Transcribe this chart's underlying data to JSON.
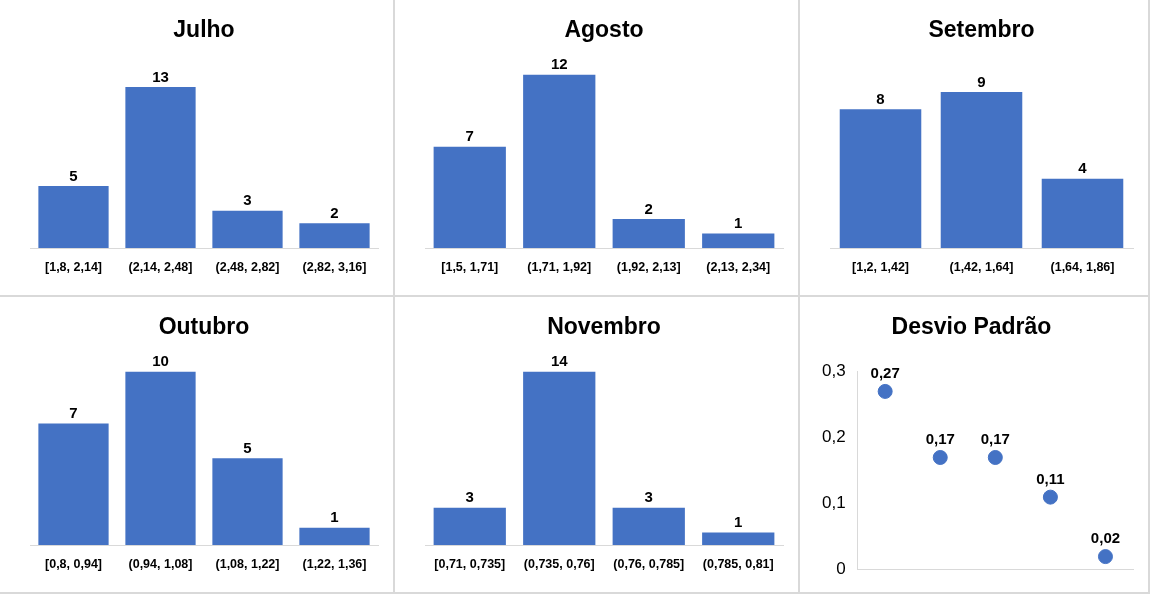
{
  "chart_data": [
    {
      "type": "bar",
      "title": "Julho",
      "categories": [
        "[1,8, 2,14]",
        "(2,14, 2,48]",
        "(2,48, 2,82]",
        "(2,82, 3,16]"
      ],
      "values": [
        5,
        13,
        3,
        2
      ],
      "color": "#4472c4",
      "data_labels": true,
      "tick_labels": "x",
      "grid": false,
      "legend": false
    },
    {
      "type": "bar",
      "title": "Agosto",
      "categories": [
        "[1,5, 1,71]",
        "(1,71, 1,92]",
        "(1,92, 2,13]",
        "(2,13, 2,34]"
      ],
      "values": [
        7,
        12,
        2,
        1
      ],
      "color": "#4472c4",
      "data_labels": true,
      "tick_labels": "x",
      "grid": false,
      "legend": false
    },
    {
      "type": "bar",
      "title": "Setembro",
      "categories": [
        "[1,2, 1,42]",
        "(1,42, 1,64]",
        "(1,64, 1,86]"
      ],
      "values": [
        8,
        9,
        4
      ],
      "color": "#4472c4",
      "data_labels": true,
      "tick_labels": "x",
      "grid": false,
      "legend": false
    },
    {
      "type": "bar",
      "title": "Outubro",
      "categories": [
        "[0,8, 0,94]",
        "(0,94, 1,08]",
        "(1,08, 1,22]",
        "(1,22, 1,36]"
      ],
      "values": [
        7,
        10,
        5,
        1
      ],
      "color": "#4472c4",
      "data_labels": true,
      "tick_labels": "x",
      "grid": false,
      "legend": false
    },
    {
      "type": "bar",
      "title": "Novembro",
      "categories": [
        "[0,71, 0,735]",
        "(0,735, 0,76]",
        "(0,76, 0,785]",
        "(0,785, 0,81]"
      ],
      "values": [
        3,
        14,
        3,
        1
      ],
      "color": "#4472c4",
      "data_labels": true,
      "tick_labels": "x",
      "grid": false,
      "legend": false
    },
    {
      "type": "scatter",
      "title": "Desvio Padrão",
      "categories": [
        null,
        null,
        null,
        null,
        null
      ],
      "values": [
        0.27,
        0.17,
        0.17,
        0.11,
        0.02
      ],
      "value_labels": [
        "0,27",
        "0,17",
        "0,17",
        "0,11",
        "0,02"
      ],
      "color": "#4472c4",
      "marker": "circle",
      "ylim": [
        0,
        0.3
      ],
      "yticks": [
        {
          "value": 0,
          "label": "0"
        },
        {
          "value": 0.1,
          "label": "0,1"
        },
        {
          "value": 0.2,
          "label": "0,2"
        },
        {
          "value": 0.3,
          "label": "0,3"
        }
      ],
      "tick_labels": "y",
      "grid": false,
      "legend": false
    }
  ]
}
